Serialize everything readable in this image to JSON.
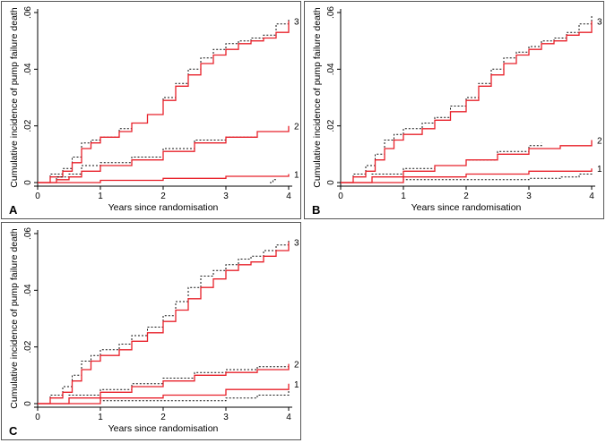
{
  "chart_data": [
    {
      "panel": "A",
      "type": "line",
      "xlabel": "Years since randomisation",
      "ylabel": "Cumulative incidence of pump failure death",
      "xlim": [
        0,
        4
      ],
      "ylim": [
        0,
        0.06
      ],
      "xticks": [
        "0",
        "1",
        "2",
        "3",
        "4"
      ],
      "yticks": [
        "0",
        ".02",
        ".04",
        ".06"
      ],
      "series": [
        {
          "name": "3",
          "model": [
            [
              0,
              0
            ],
            [
              0.2,
              0.002
            ],
            [
              0.4,
              0.004
            ],
            [
              0.55,
              0.007
            ],
            [
              0.7,
              0.012
            ],
            [
              0.85,
              0.014
            ],
            [
              1.0,
              0.016
            ],
            [
              1.3,
              0.018
            ],
            [
              1.5,
              0.021
            ],
            [
              1.75,
              0.024
            ],
            [
              2.0,
              0.029
            ],
            [
              2.2,
              0.034
            ],
            [
              2.4,
              0.038
            ],
            [
              2.6,
              0.042
            ],
            [
              2.8,
              0.045
            ],
            [
              3.0,
              0.047
            ],
            [
              3.2,
              0.049
            ],
            [
              3.4,
              0.05
            ],
            [
              3.6,
              0.051
            ],
            [
              3.8,
              0.053
            ],
            [
              4.0,
              0.057
            ]
          ],
          "observed": [
            [
              0,
              0
            ],
            [
              0.2,
              0.003
            ],
            [
              0.4,
              0.005
            ],
            [
              0.55,
              0.009
            ],
            [
              0.7,
              0.014
            ],
            [
              0.85,
              0.015
            ],
            [
              1.0,
              0.016
            ],
            [
              1.3,
              0.019
            ],
            [
              1.5,
              0.021
            ],
            [
              1.75,
              0.024
            ],
            [
              2.0,
              0.03
            ],
            [
              2.2,
              0.035
            ],
            [
              2.4,
              0.04
            ],
            [
              2.6,
              0.044
            ],
            [
              2.8,
              0.047
            ],
            [
              3.0,
              0.049
            ],
            [
              3.2,
              0.05
            ],
            [
              3.4,
              0.051
            ],
            [
              3.6,
              0.052
            ],
            [
              3.8,
              0.056
            ],
            [
              4.0,
              0.058
            ]
          ]
        },
        {
          "name": "2",
          "model": [
            [
              0,
              0
            ],
            [
              0.3,
              0.001
            ],
            [
              0.5,
              0.002
            ],
            [
              0.7,
              0.004
            ],
            [
              1.0,
              0.006
            ],
            [
              1.5,
              0.008
            ],
            [
              2.0,
              0.011
            ],
            [
              2.5,
              0.014
            ],
            [
              3.0,
              0.016
            ],
            [
              3.5,
              0.018
            ],
            [
              4.0,
              0.02
            ]
          ],
          "observed": [
            [
              0,
              0
            ],
            [
              0.3,
              0.002
            ],
            [
              0.5,
              0.003
            ],
            [
              0.7,
              0.006
            ],
            [
              1.0,
              0.007
            ],
            [
              1.5,
              0.009
            ],
            [
              2.0,
              0.012
            ],
            [
              2.5,
              0.015
            ],
            [
              3.0,
              0.016
            ],
            [
              3.5,
              0.018
            ],
            [
              4.0,
              0.019
            ]
          ]
        },
        {
          "name": "1",
          "model": [
            [
              0,
              0
            ],
            [
              1,
              0.0008
            ],
            [
              2,
              0.0015
            ],
            [
              3,
              0.0022
            ],
            [
              4,
              0.003
            ]
          ],
          "observed": [
            [
              3.7,
              0
            ],
            [
              3.75,
              0.001
            ],
            [
              3.8,
              0.001
            ]
          ]
        }
      ]
    },
    {
      "panel": "B",
      "type": "line",
      "xlabel": "Years since randomisation",
      "ylabel": "Cumulative incidence of pump failure death",
      "xlim": [
        0,
        4
      ],
      "ylim": [
        0,
        0.06
      ],
      "xticks": [
        "0",
        "1",
        "2",
        "3",
        "4"
      ],
      "yticks": [
        "0",
        ".02",
        ".04",
        ".06"
      ],
      "series": [
        {
          "name": "3",
          "model": [
            [
              0,
              0
            ],
            [
              0.2,
              0.002
            ],
            [
              0.4,
              0.004
            ],
            [
              0.55,
              0.008
            ],
            [
              0.7,
              0.012
            ],
            [
              0.85,
              0.015
            ],
            [
              1.0,
              0.017
            ],
            [
              1.3,
              0.019
            ],
            [
              1.5,
              0.022
            ],
            [
              1.75,
              0.025
            ],
            [
              2.0,
              0.029
            ],
            [
              2.2,
              0.034
            ],
            [
              2.4,
              0.038
            ],
            [
              2.6,
              0.042
            ],
            [
              2.8,
              0.045
            ],
            [
              3.0,
              0.047
            ],
            [
              3.2,
              0.049
            ],
            [
              3.4,
              0.05
            ],
            [
              3.6,
              0.052
            ],
            [
              3.8,
              0.053
            ],
            [
              4.0,
              0.057
            ]
          ],
          "observed": [
            [
              0,
              0
            ],
            [
              0.2,
              0.003
            ],
            [
              0.4,
              0.006
            ],
            [
              0.55,
              0.01
            ],
            [
              0.7,
              0.015
            ],
            [
              0.85,
              0.017
            ],
            [
              1.0,
              0.019
            ],
            [
              1.3,
              0.021
            ],
            [
              1.5,
              0.023
            ],
            [
              1.75,
              0.027
            ],
            [
              2.0,
              0.03
            ],
            [
              2.2,
              0.035
            ],
            [
              2.4,
              0.04
            ],
            [
              2.6,
              0.044
            ],
            [
              2.8,
              0.046
            ],
            [
              3.0,
              0.048
            ],
            [
              3.2,
              0.05
            ],
            [
              3.4,
              0.051
            ],
            [
              3.6,
              0.053
            ],
            [
              3.8,
              0.056
            ],
            [
              4.0,
              0.059
            ]
          ]
        },
        {
          "name": "2",
          "model": [
            [
              0,
              0
            ],
            [
              0.5,
              0.002
            ],
            [
              1.0,
              0.004
            ],
            [
              1.5,
              0.006
            ],
            [
              2.0,
              0.008
            ],
            [
              2.5,
              0.01
            ],
            [
              3.0,
              0.012
            ],
            [
              3.5,
              0.013
            ],
            [
              4.0,
              0.015
            ]
          ],
          "observed": [
            [
              0,
              0
            ],
            [
              0.5,
              0.003
            ],
            [
              1.0,
              0.005
            ],
            [
              1.5,
              0.006
            ],
            [
              2.0,
              0.008
            ],
            [
              2.5,
              0.011
            ],
            [
              3.0,
              0.013
            ],
            [
              3.2,
              0.014
            ]
          ]
        },
        {
          "name": "1",
          "model": [
            [
              0,
              0
            ],
            [
              1,
              0.002
            ],
            [
              2,
              0.003
            ],
            [
              3,
              0.004
            ],
            [
              4,
              0.005
            ]
          ],
          "observed": [
            [
              0,
              0
            ],
            [
              1,
              0.001
            ],
            [
              2,
              0.001
            ],
            [
              3,
              0.0015
            ],
            [
              3.5,
              0.002
            ],
            [
              3.8,
              0.003
            ],
            [
              4.0,
              0.004
            ]
          ]
        }
      ]
    },
    {
      "panel": "C",
      "type": "line",
      "xlabel": "Years since randomisation",
      "ylabel": "Cumulative incidence of pump failure death",
      "xlim": [
        0,
        4
      ],
      "ylim": [
        0,
        0.06
      ],
      "xticks": [
        "0",
        "1",
        "2",
        "3",
        "4"
      ],
      "yticks": [
        "0",
        ".02",
        ".04",
        ".06"
      ],
      "series": [
        {
          "name": "3",
          "model": [
            [
              0,
              0
            ],
            [
              0.2,
              0.002
            ],
            [
              0.4,
              0.004
            ],
            [
              0.55,
              0.008
            ],
            [
              0.7,
              0.012
            ],
            [
              0.85,
              0.015
            ],
            [
              1.0,
              0.017
            ],
            [
              1.3,
              0.019
            ],
            [
              1.5,
              0.022
            ],
            [
              1.75,
              0.025
            ],
            [
              2.0,
              0.029
            ],
            [
              2.2,
              0.033
            ],
            [
              2.4,
              0.037
            ],
            [
              2.6,
              0.041
            ],
            [
              2.8,
              0.044
            ],
            [
              3.0,
              0.047
            ],
            [
              3.2,
              0.049
            ],
            [
              3.4,
              0.05
            ],
            [
              3.6,
              0.052
            ],
            [
              3.8,
              0.054
            ],
            [
              4.0,
              0.057
            ]
          ],
          "observed": [
            [
              0,
              0
            ],
            [
              0.2,
              0.003
            ],
            [
              0.4,
              0.006
            ],
            [
              0.55,
              0.01
            ],
            [
              0.7,
              0.015
            ],
            [
              0.85,
              0.017
            ],
            [
              1.0,
              0.019
            ],
            [
              1.3,
              0.021
            ],
            [
              1.5,
              0.024
            ],
            [
              1.75,
              0.027
            ],
            [
              2.0,
              0.031
            ],
            [
              2.2,
              0.036
            ],
            [
              2.4,
              0.041
            ],
            [
              2.6,
              0.045
            ],
            [
              2.8,
              0.047
            ],
            [
              3.0,
              0.049
            ],
            [
              3.2,
              0.051
            ],
            [
              3.4,
              0.052
            ],
            [
              3.6,
              0.054
            ],
            [
              3.8,
              0.056
            ],
            [
              4.0,
              0.058
            ]
          ]
        },
        {
          "name": "2",
          "model": [
            [
              0,
              0
            ],
            [
              0.5,
              0.002
            ],
            [
              1.0,
              0.004
            ],
            [
              1.5,
              0.006
            ],
            [
              2.0,
              0.008
            ],
            [
              2.5,
              0.01
            ],
            [
              3.0,
              0.011
            ],
            [
              3.5,
              0.012
            ],
            [
              4.0,
              0.014
            ]
          ],
          "observed": [
            [
              0,
              0
            ],
            [
              0.5,
              0.003
            ],
            [
              1.0,
              0.005
            ],
            [
              1.5,
              0.007
            ],
            [
              2.0,
              0.009
            ],
            [
              2.5,
              0.011
            ],
            [
              3.0,
              0.012
            ],
            [
              3.5,
              0.013
            ],
            [
              4.0,
              0.014
            ]
          ]
        },
        {
          "name": "1",
          "model": [
            [
              0,
              0
            ],
            [
              1,
              0.002
            ],
            [
              2,
              0.003
            ],
            [
              3,
              0.005
            ],
            [
              4,
              0.007
            ]
          ],
          "observed": [
            [
              0,
              0
            ],
            [
              1,
              0.001
            ],
            [
              2,
              0.001
            ],
            [
              3,
              0.002
            ],
            [
              3.5,
              0.003
            ],
            [
              4.0,
              0.006
            ]
          ]
        }
      ]
    }
  ],
  "colors": {
    "model": "#e8202a",
    "observed": "#111111",
    "axis": "#000000"
  }
}
